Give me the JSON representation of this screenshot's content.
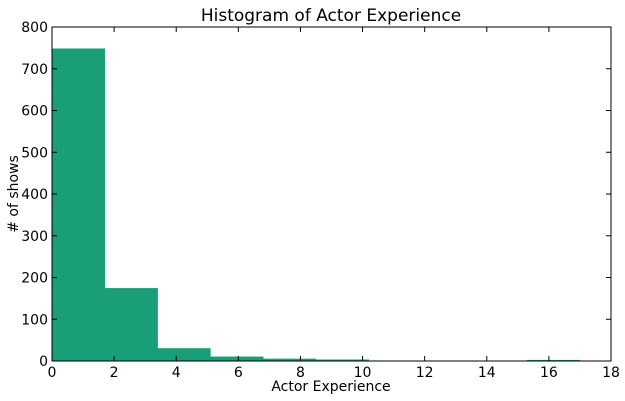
{
  "chart_data": {
    "type": "bar",
    "title": "Histogram of Actor Experience",
    "xlabel": "Actor Experience",
    "ylabel": "# of shows",
    "xlim": [
      0,
      18
    ],
    "ylim": [
      0,
      800
    ],
    "xticks": [
      "0",
      "2",
      "4",
      "6",
      "8",
      "10",
      "12",
      "14",
      "16",
      "18"
    ],
    "yticks": [
      "0",
      "100",
      "200",
      "300",
      "400",
      "500",
      "600",
      "700",
      "800"
    ],
    "bar_color": "#1a9e77",
    "grid": false,
    "bins": [
      {
        "start": 0.0,
        "end": 1.7,
        "value": 748
      },
      {
        "start": 1.7,
        "end": 3.4,
        "value": 174
      },
      {
        "start": 3.4,
        "end": 5.1,
        "value": 30
      },
      {
        "start": 5.1,
        "end": 6.8,
        "value": 10
      },
      {
        "start": 6.8,
        "end": 8.5,
        "value": 5
      },
      {
        "start": 8.5,
        "end": 10.2,
        "value": 3
      },
      {
        "start": 10.2,
        "end": 11.9,
        "value": 0
      },
      {
        "start": 11.9,
        "end": 13.6,
        "value": 0
      },
      {
        "start": 13.6,
        "end": 15.3,
        "value": 0
      },
      {
        "start": 15.3,
        "end": 17.0,
        "value": 2
      }
    ]
  }
}
